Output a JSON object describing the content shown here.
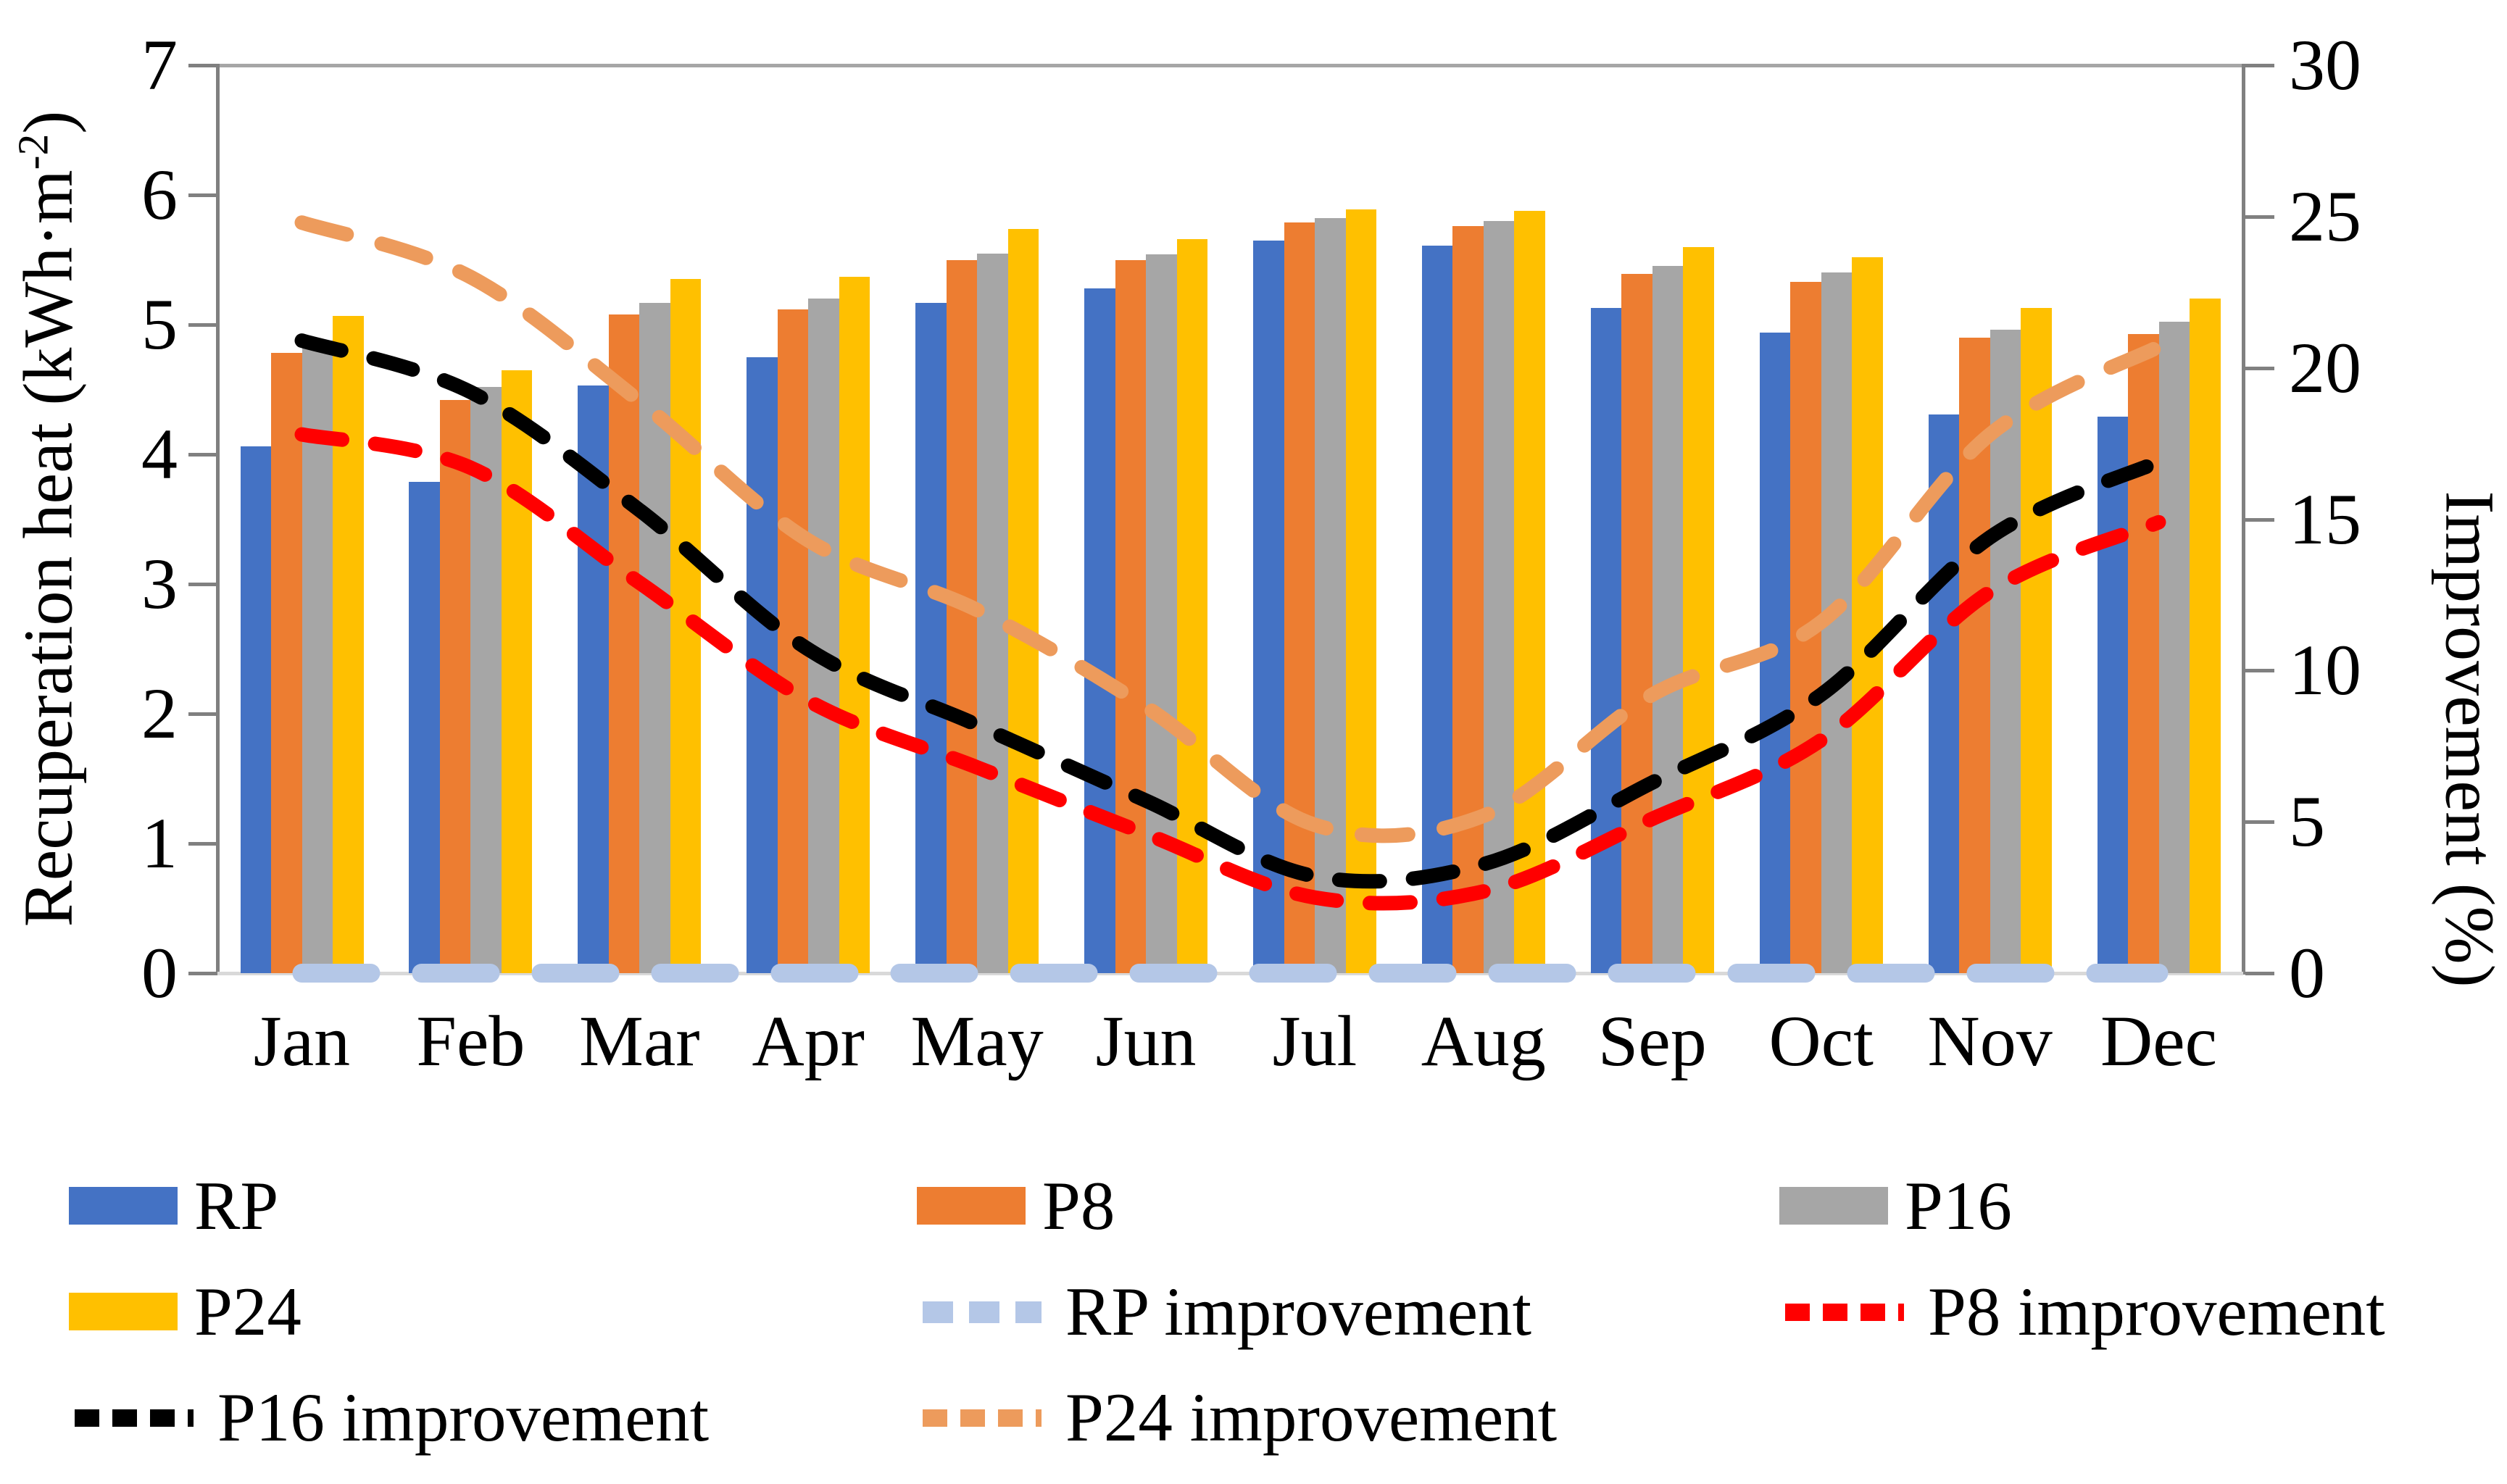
{
  "chart_data": {
    "type": "bar+line",
    "categories": [
      "Jan",
      "Feb",
      "Mar",
      "Apr",
      "May",
      "Jun",
      "Jul",
      "Aug",
      "Sep",
      "Oct",
      "Nov",
      "Dec"
    ],
    "left_axis": {
      "title_main": "Recuperation heat (kWh·m",
      "title_sup": "-2",
      "title_close": ")",
      "ticks": [
        0,
        1,
        2,
        3,
        4,
        5,
        6,
        7
      ],
      "ylim": [
        0,
        7
      ]
    },
    "right_axis": {
      "title": "Improvement (%)",
      "ticks": [
        0,
        5,
        10,
        15,
        20,
        25,
        30
      ],
      "ylim": [
        0,
        30
      ]
    },
    "bar_series": [
      {
        "name": "RP",
        "color": "#4472C4",
        "values": [
          4.06,
          3.79,
          4.53,
          4.75,
          5.17,
          5.28,
          5.65,
          5.61,
          5.13,
          4.94,
          4.31,
          4.29
        ]
      },
      {
        "name": "P8",
        "color": "#ED7D31",
        "values": [
          4.78,
          4.42,
          5.08,
          5.12,
          5.5,
          5.5,
          5.79,
          5.76,
          5.39,
          5.33,
          4.9,
          4.93
        ]
      },
      {
        "name": "P16",
        "color": "#A6A6A6",
        "values": [
          4.88,
          4.52,
          5.17,
          5.2,
          5.55,
          5.54,
          5.82,
          5.8,
          5.45,
          5.4,
          4.96,
          5.02
        ]
      },
      {
        "name": "P24",
        "color": "#FFC000",
        "values": [
          5.07,
          4.65,
          5.35,
          5.37,
          5.74,
          5.66,
          5.89,
          5.88,
          5.6,
          5.52,
          5.13,
          5.2
        ]
      }
    ],
    "line_series": [
      {
        "name": "RP improvement",
        "color": "#B4C7E7",
        "width": 26,
        "dash": "95 70",
        "values": [
          0,
          0,
          0,
          0,
          0,
          0,
          0,
          0,
          0,
          0,
          0,
          0
        ]
      },
      {
        "name": "P8 improvement",
        "color": "#FF0000",
        "width": 20,
        "dash": "56 46",
        "values": [
          17.8,
          16.7,
          12.9,
          9.0,
          6.8,
          4.6,
          2.5,
          2.7,
          5.1,
          7.7,
          12.6,
          14.9
        ]
      },
      {
        "name": "P16 improvement",
        "color": "#000000",
        "width": 20,
        "dash": "56 46",
        "values": [
          20.9,
          19.2,
          15.3,
          10.7,
          8.2,
          5.7,
          3.2,
          3.6,
          6.3,
          9.2,
          14.4,
          16.9
        ]
      },
      {
        "name": "P24 improvement",
        "color": "#ED9B5C",
        "width": 20,
        "dash": "64 50",
        "values": [
          24.8,
          23.0,
          18.9,
          14.3,
          12.0,
          8.8,
          4.9,
          5.2,
          9.2,
          11.6,
          17.8,
          20.7
        ]
      }
    ],
    "legend_position": "bottom",
    "grid": false
  },
  "legend": {
    "items": [
      {
        "label": "RP",
        "type": "bar",
        "series": 0
      },
      {
        "label": "P8",
        "type": "bar",
        "series": 1
      },
      {
        "label": "P16",
        "type": "bar",
        "series": 2
      },
      {
        "label": "P24",
        "type": "bar",
        "series": 3
      },
      {
        "label": "RP improvement",
        "type": "line",
        "series": 0
      },
      {
        "label": "P8 improvement",
        "type": "line",
        "series": 1
      },
      {
        "label": "P16 improvement",
        "type": "line",
        "series": 2
      },
      {
        "label": "P24 improvement",
        "type": "line",
        "series": 3
      }
    ]
  },
  "colors": {
    "axis_line": "#808080",
    "top_border": "#A6A6A6",
    "baseline": "#D9D9D9"
  }
}
